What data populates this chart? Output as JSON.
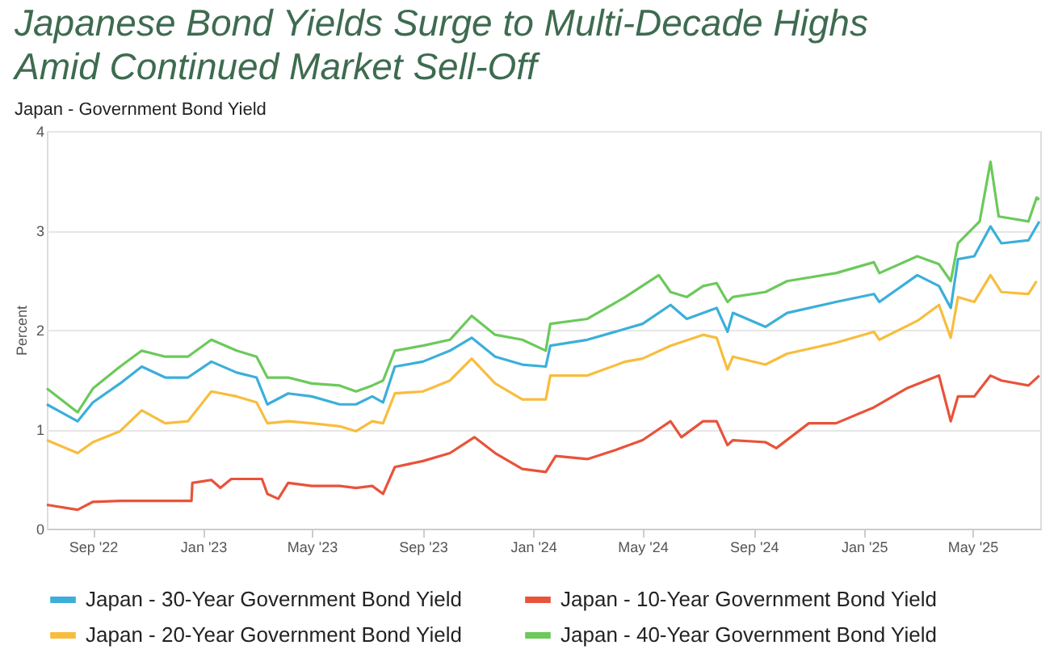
{
  "chart_data": {
    "type": "line",
    "title": "Japanese Bond Yields Surge to Multi-Decade Highs Amid Continued Market Sell-Off",
    "subtitle": "Japan - Government Bond Yield",
    "ylabel": "Percent",
    "xlim": [
      "2022-07-12",
      "2025-07-15"
    ],
    "ylim": [
      0,
      4
    ],
    "yticks": [
      0,
      1,
      2,
      3,
      4
    ],
    "xticks": [
      {
        "value": "2022-09-01",
        "label": "Sep '22"
      },
      {
        "value": "2023-01-01",
        "label": "Jan '23"
      },
      {
        "value": "2023-05-01",
        "label": "May '23"
      },
      {
        "value": "2023-09-01",
        "label": "Sep '23"
      },
      {
        "value": "2024-01-01",
        "label": "Jan '24"
      },
      {
        "value": "2024-05-01",
        "label": "May '24"
      },
      {
        "value": "2024-09-01",
        "label": "Sep '24"
      },
      {
        "value": "2025-01-01",
        "label": "Jan '25"
      },
      {
        "value": "2025-05-01",
        "label": "May '25"
      }
    ],
    "grid": "y",
    "legend": "bottom",
    "series": [
      {
        "name": "Japan - 30-Year Government Bond Yield",
        "color": "#3bafda",
        "x": [
          "2022-07-12",
          "2022-08-15",
          "2022-09-01",
          "2022-10-01",
          "2022-10-25",
          "2022-11-20",
          "2022-12-15",
          "2023-01-10",
          "2023-02-07",
          "2023-03-01",
          "2023-03-13",
          "2023-04-05",
          "2023-05-01",
          "2023-06-01",
          "2023-06-19",
          "2023-07-07",
          "2023-07-19",
          "2023-08-01",
          "2023-09-01",
          "2023-10-01",
          "2023-10-25",
          "2023-11-20",
          "2023-12-20",
          "2024-01-15",
          "2024-01-20",
          "2024-03-01",
          "2024-04-12",
          "2024-05-01",
          "2024-06-01",
          "2024-06-19",
          "2024-07-22",
          "2024-08-03",
          "2024-08-09",
          "2024-09-14",
          "2024-10-08",
          "2024-12-01",
          "2025-01-12",
          "2025-01-18",
          "2025-03-01",
          "2025-03-25",
          "2025-04-07",
          "2025-04-15",
          "2025-05-03",
          "2025-05-21",
          "2025-06-02",
          "2025-07-02",
          "2025-07-14"
        ],
        "values": [
          1.25,
          1.08,
          1.27,
          1.46,
          1.63,
          1.52,
          1.52,
          1.68,
          1.57,
          1.52,
          1.25,
          1.36,
          1.33,
          1.25,
          1.25,
          1.33,
          1.27,
          1.63,
          1.68,
          1.79,
          1.92,
          1.73,
          1.65,
          1.63,
          1.84,
          1.9,
          2.01,
          2.06,
          2.25,
          2.11,
          2.22,
          1.98,
          2.17,
          2.03,
          2.17,
          2.28,
          2.36,
          2.28,
          2.55,
          2.44,
          2.22,
          2.71,
          2.74,
          3.04,
          2.87,
          2.9,
          3.09
        ]
      },
      {
        "name": "Japan - 10-Year Government Bond Yield",
        "color": "#e8533a",
        "x": [
          "2022-07-12",
          "2022-08-15",
          "2022-09-01",
          "2022-10-01",
          "2022-11-20",
          "2022-12-19",
          "2022-12-20",
          "2023-01-10",
          "2023-01-20",
          "2023-02-01",
          "2023-03-07",
          "2023-03-13",
          "2023-03-25",
          "2023-04-05",
          "2023-05-01",
          "2023-06-01",
          "2023-06-19",
          "2023-07-07",
          "2023-07-19",
          "2023-08-01",
          "2023-09-01",
          "2023-10-01",
          "2023-10-28",
          "2023-11-20",
          "2023-12-20",
          "2024-01-15",
          "2024-01-26",
          "2024-03-01",
          "2024-04-01",
          "2024-05-01",
          "2024-06-01",
          "2024-06-13",
          "2024-07-07",
          "2024-07-22",
          "2024-08-03",
          "2024-08-09",
          "2024-09-14",
          "2024-09-26",
          "2024-11-01",
          "2024-12-01",
          "2025-01-12",
          "2025-02-17",
          "2025-03-25",
          "2025-04-07",
          "2025-04-15",
          "2025-05-03",
          "2025-05-21",
          "2025-06-02",
          "2025-07-02",
          "2025-07-14"
        ],
        "values": [
          0.24,
          0.19,
          0.27,
          0.28,
          0.28,
          0.28,
          0.46,
          0.49,
          0.41,
          0.5,
          0.5,
          0.35,
          0.3,
          0.46,
          0.43,
          0.43,
          0.41,
          0.43,
          0.35,
          0.62,
          0.68,
          0.76,
          0.92,
          0.76,
          0.6,
          0.57,
          0.73,
          0.7,
          0.79,
          0.89,
          1.08,
          0.92,
          1.08,
          1.08,
          0.84,
          0.89,
          0.87,
          0.81,
          1.06,
          1.06,
          1.22,
          1.41,
          1.54,
          1.08,
          1.33,
          1.33,
          1.54,
          1.49,
          1.44,
          1.54
        ]
      },
      {
        "name": "Japan - 20-Year Government Bond Yield",
        "color": "#f8bd3e",
        "x": [
          "2022-07-12",
          "2022-08-15",
          "2022-09-01",
          "2022-10-01",
          "2022-10-25",
          "2022-11-20",
          "2022-12-15",
          "2023-01-10",
          "2023-02-07",
          "2023-03-01",
          "2023-03-13",
          "2023-04-05",
          "2023-05-01",
          "2023-06-01",
          "2023-06-19",
          "2023-07-07",
          "2023-07-19",
          "2023-08-01",
          "2023-09-01",
          "2023-10-01",
          "2023-10-25",
          "2023-11-20",
          "2023-12-20",
          "2024-01-15",
          "2024-01-20",
          "2024-03-01",
          "2024-04-12",
          "2024-05-01",
          "2024-06-01",
          "2024-07-07",
          "2024-07-22",
          "2024-08-03",
          "2024-08-09",
          "2024-09-14",
          "2024-10-08",
          "2024-12-01",
          "2025-01-12",
          "2025-01-18",
          "2025-03-01",
          "2025-03-25",
          "2025-04-07",
          "2025-04-15",
          "2025-05-03",
          "2025-05-21",
          "2025-06-02",
          "2025-07-02",
          "2025-07-11"
        ],
        "values": [
          0.89,
          0.76,
          0.87,
          0.98,
          1.19,
          1.06,
          1.08,
          1.38,
          1.33,
          1.27,
          1.06,
          1.08,
          1.06,
          1.03,
          0.98,
          1.08,
          1.06,
          1.36,
          1.38,
          1.49,
          1.71,
          1.46,
          1.3,
          1.3,
          1.54,
          1.54,
          1.68,
          1.71,
          1.84,
          1.95,
          1.92,
          1.6,
          1.73,
          1.65,
          1.76,
          1.87,
          1.98,
          1.9,
          2.09,
          2.25,
          1.92,
          2.33,
          2.28,
          2.55,
          2.38,
          2.36,
          2.49
        ]
      },
      {
        "name": "Japan - 40-Year Government Bond Yield",
        "color": "#6cc95b",
        "x": [
          "2022-07-12",
          "2022-08-15",
          "2022-09-01",
          "2022-10-01",
          "2022-10-25",
          "2022-11-20",
          "2022-12-15",
          "2023-01-10",
          "2023-02-07",
          "2023-03-01",
          "2023-03-13",
          "2023-04-05",
          "2023-05-01",
          "2023-06-01",
          "2023-06-19",
          "2023-07-07",
          "2023-07-19",
          "2023-08-01",
          "2023-09-01",
          "2023-10-01",
          "2023-10-25",
          "2023-11-20",
          "2023-12-20",
          "2024-01-15",
          "2024-01-20",
          "2024-03-01",
          "2024-04-12",
          "2024-05-19",
          "2024-06-01",
          "2024-06-19",
          "2024-07-07",
          "2024-07-22",
          "2024-08-03",
          "2024-08-09",
          "2024-09-14",
          "2024-10-08",
          "2024-12-01",
          "2025-01-12",
          "2025-01-18",
          "2025-03-01",
          "2025-03-25",
          "2025-04-07",
          "2025-04-15",
          "2025-05-09",
          "2025-05-21",
          "2025-05-30",
          "2025-07-02",
          "2025-07-11",
          "2025-07-14"
        ],
        "values": [
          1.41,
          1.17,
          1.41,
          1.63,
          1.79,
          1.73,
          1.73,
          1.9,
          1.79,
          1.73,
          1.52,
          1.52,
          1.46,
          1.44,
          1.38,
          1.44,
          1.49,
          1.79,
          1.84,
          1.9,
          2.14,
          1.95,
          1.9,
          1.79,
          2.06,
          2.11,
          2.33,
          2.55,
          2.38,
          2.33,
          2.44,
          2.47,
          2.28,
          2.33,
          2.38,
          2.49,
          2.57,
          2.68,
          2.57,
          2.74,
          2.66,
          2.49,
          2.87,
          3.09,
          3.69,
          3.14,
          3.09,
          3.33,
          3.31
        ]
      }
    ]
  }
}
